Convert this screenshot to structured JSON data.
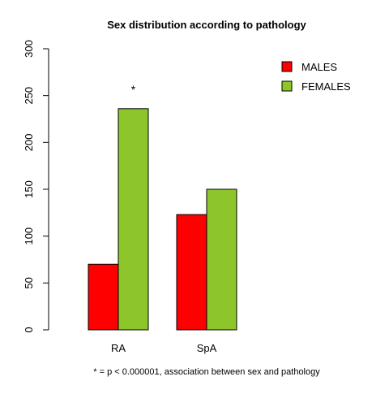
{
  "chart_data": {
    "type": "bar",
    "title": "Sex distribution according to pathology",
    "categories": [
      "RA",
      "SpA"
    ],
    "series": [
      {
        "name": "MALES",
        "values": [
          70,
          123
        ],
        "color": "#ff0000"
      },
      {
        "name": "FEMALES",
        "values": [
          236,
          150
        ],
        "color": "#8dc62b"
      }
    ],
    "ylim": [
      0,
      300
    ],
    "yticks": [
      0,
      50,
      100,
      150,
      200,
      250,
      300
    ],
    "grid": false,
    "legend_position": "top-right",
    "annotations": [
      {
        "text": "*",
        "category": "RA",
        "series": "FEMALES"
      }
    ],
    "footnote": "* = p < 0.000001, association between sex and pathology"
  }
}
